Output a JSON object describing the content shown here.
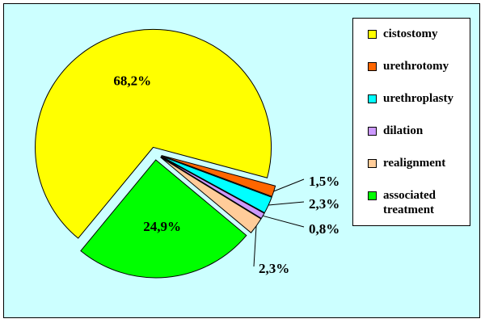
{
  "chart_data": {
    "type": "pie",
    "categories": [
      "cistostomy",
      "urethrotomy",
      "urethroplasty",
      "dilation",
      "realignment",
      "associated treatment"
    ],
    "values": [
      68.2,
      1.5,
      2.3,
      0.8,
      2.3,
      24.9
    ],
    "value_labels": [
      "68,2%",
      "1,5%",
      "2,3%",
      "0,8%",
      "2,3%",
      "24,9%"
    ],
    "colors": [
      "#ffff00",
      "#ff6600",
      "#00ffff",
      "#cc99ff",
      "#ffcc99",
      "#00ff00"
    ]
  }
}
